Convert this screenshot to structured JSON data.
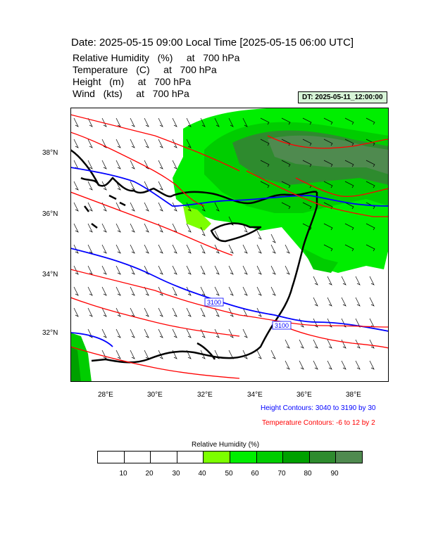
{
  "title": "Date: 2025-05-15  09:00 Local Time [2025-05-15  06:00 UTC]",
  "fields": [
    {
      "name": "Relative Humidity",
      "unit": "(%)",
      "at": "at",
      "level": "700 hPa"
    },
    {
      "name": "Temperature",
      "unit": "(C)",
      "at": "at",
      "level": "700 hPa"
    },
    {
      "name": "Height",
      "unit": "(m)",
      "at": "at",
      "level": "700 hPa"
    },
    {
      "name": "Wind",
      "unit": "(kts)",
      "at": "at",
      "level": "700 hPa"
    }
  ],
  "dt_label": "DT: 2025-05-11_12:00:00",
  "lat_ticks": [
    "38°N",
    "36°N",
    "34°N",
    "32°N"
  ],
  "lon_ticks": [
    "28°E",
    "30°E",
    "32°E",
    "34°E",
    "36°E",
    "38°E"
  ],
  "height_contour_note": "Height Contours: 3040 to 3190 by 30",
  "temp_contour_note": "Temperature Contours: -6 to 12 by 2",
  "colorbar": {
    "title": "Relative Humidity  (%)",
    "labels": [
      "10",
      "20",
      "30",
      "40",
      "50",
      "60",
      "70",
      "80",
      "90"
    ],
    "colors": [
      "#ffffff",
      "#ffffff",
      "#ffffff",
      "#ffffff",
      "#7cff00",
      "#00ee00",
      "#00cd00",
      "#00a000",
      "#2e8b2e",
      "#4f8a4f"
    ]
  },
  "height_labels": [
    "3100",
    "3100"
  ],
  "colors": {
    "height": "#0000ff",
    "temperature": "#ff0000",
    "coast": "#000000"
  }
}
